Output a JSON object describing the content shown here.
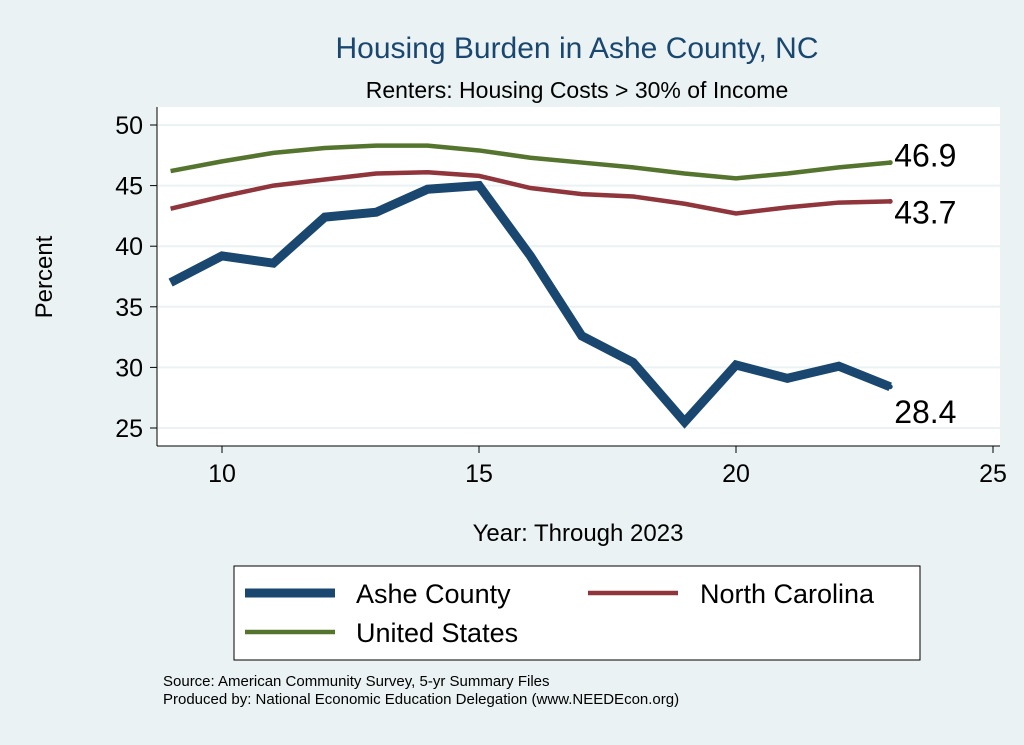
{
  "chart_data": {
    "type": "line",
    "title": "Housing Burden in Ashe County, NC",
    "subtitle": "Renters: Housing Costs > 30% of Income",
    "xlabel": "Year: Through 2023",
    "ylabel": "Percent",
    "xlim": [
      8.5,
      25.5
    ],
    "ylim": [
      24,
      51.5
    ],
    "xticks": [
      10,
      15,
      20,
      25
    ],
    "yticks": [
      25,
      30,
      35,
      40,
      45,
      50
    ],
    "grid": true,
    "x": [
      9,
      10,
      11,
      12,
      13,
      14,
      15,
      16,
      17,
      18,
      19,
      20,
      21,
      22,
      23
    ],
    "series": [
      {
        "name": "Ashe County",
        "color": "#1a476f",
        "width": 9,
        "values": [
          37.0,
          39.2,
          38.6,
          42.4,
          42.8,
          44.7,
          45.0,
          39.2,
          32.6,
          30.4,
          25.5,
          30.2,
          29.1,
          30.1,
          28.4
        ],
        "end_label": "28.4"
      },
      {
        "name": "North Carolina",
        "color": "#90353b",
        "width": 4.5,
        "values": [
          43.1,
          44.1,
          45.0,
          45.5,
          46.0,
          46.1,
          45.8,
          44.8,
          44.3,
          44.1,
          43.5,
          42.7,
          43.2,
          43.6,
          43.7
        ],
        "end_label": "43.7"
      },
      {
        "name": "United States",
        "color": "#55752f",
        "width": 4.5,
        "values": [
          46.2,
          47.0,
          47.7,
          48.1,
          48.3,
          48.3,
          47.9,
          47.3,
          46.9,
          46.5,
          46.0,
          45.6,
          46.0,
          46.5,
          46.9
        ],
        "end_label": "46.9"
      }
    ],
    "legend_position": "bottom"
  },
  "source": "Source: American Community Survey, 5-yr Summary Files",
  "producer": "Produced by: National Economic Education Delegation (www.NEEDEcon.org)"
}
